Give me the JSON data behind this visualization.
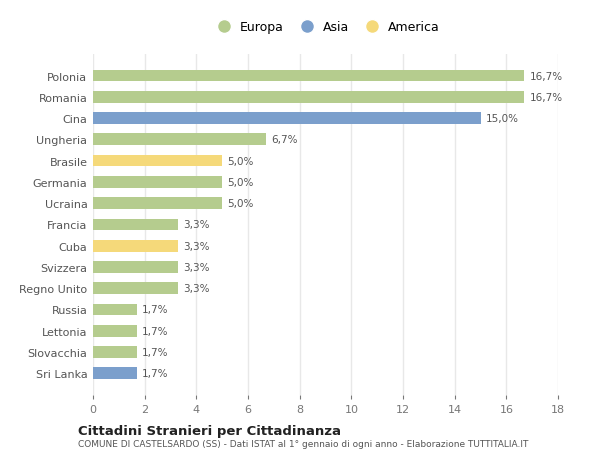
{
  "categories": [
    "Polonia",
    "Romania",
    "Cina",
    "Ungheria",
    "Brasile",
    "Germania",
    "Ucraina",
    "Francia",
    "Cuba",
    "Svizzera",
    "Regno Unito",
    "Russia",
    "Lettonia",
    "Slovacchia",
    "Sri Lanka"
  ],
  "values": [
    16.7,
    16.7,
    15.0,
    6.7,
    5.0,
    5.0,
    5.0,
    3.3,
    3.3,
    3.3,
    3.3,
    1.7,
    1.7,
    1.7,
    1.7
  ],
  "labels": [
    "16,7%",
    "16,7%",
    "15,0%",
    "6,7%",
    "5,0%",
    "5,0%",
    "5,0%",
    "3,3%",
    "3,3%",
    "3,3%",
    "3,3%",
    "1,7%",
    "1,7%",
    "1,7%",
    "1,7%"
  ],
  "colors": [
    "#b5cc8e",
    "#b5cc8e",
    "#7b9fcc",
    "#b5cc8e",
    "#f5d97a",
    "#b5cc8e",
    "#b5cc8e",
    "#b5cc8e",
    "#f5d97a",
    "#b5cc8e",
    "#b5cc8e",
    "#b5cc8e",
    "#b5cc8e",
    "#b5cc8e",
    "#7b9fcc"
  ],
  "legend_labels": [
    "Europa",
    "Asia",
    "America"
  ],
  "legend_colors": [
    "#b5cc8e",
    "#7b9fcc",
    "#f5d97a"
  ],
  "xlim": [
    0,
    18
  ],
  "xticks": [
    0,
    2,
    4,
    6,
    8,
    10,
    12,
    14,
    16,
    18
  ],
  "title_main": "Cittadini Stranieri per Cittadinanza",
  "title_sub": "COMUNE DI CASTELSARDO (SS) - Dati ISTAT al 1° gennaio di ogni anno - Elaborazione TUTTITALIA.IT",
  "background_color": "#ffffff",
  "grid_color": "#e8e8e8",
  "bar_height": 0.55
}
